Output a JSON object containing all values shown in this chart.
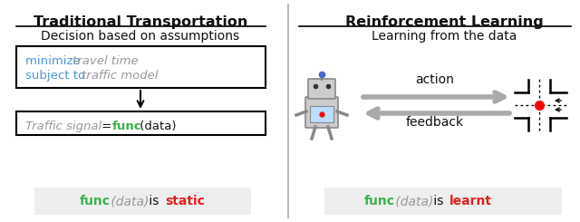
{
  "left_title": "Traditional Transportation",
  "left_subtitle": "Decision based on assumptions",
  "box1_line1_blue": "minimize ",
  "box1_line1_gray": "travel time",
  "box1_line2_blue": "subject to ",
  "box1_line2_gray": "traffic model",
  "bottom_left_green": "func",
  "bottom_left_gray_italic": " (data)",
  "bottom_left_black": " is ",
  "bottom_left_red": "static",
  "right_title": "Reinforcement Learning",
  "right_subtitle": "Learning from the data",
  "arrow_top_label": "action",
  "arrow_bottom_label": "feedback",
  "bottom_right_green": "func",
  "bottom_right_gray_italic": " (data)",
  "bottom_right_black": " is ",
  "bottom_right_red": "learnt",
  "blue_color": "#4d94d9",
  "gray_color": "#999999",
  "green_color": "#3cb04d",
  "red_color": "#e02020",
  "black_color": "#111111",
  "arrow_color": "#aaaaaa",
  "bg_box_color": "#eeeeee",
  "divider_color": "#bbbbbb"
}
